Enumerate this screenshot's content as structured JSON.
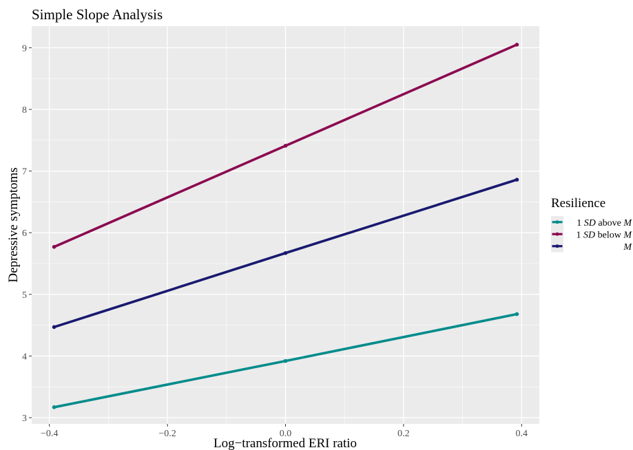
{
  "chart_data": {
    "type": "line",
    "title": "Simple Slope Analysis",
    "xlabel": "Log−transformed ERI ratio",
    "ylabel": "Depressive symptoms",
    "x": [
      -0.392,
      0.0,
      0.392
    ],
    "xlim": [
      -0.43,
      0.43
    ],
    "ylim": [
      2.9,
      9.35
    ],
    "xticks": [
      -0.4,
      -0.2,
      0.0,
      0.2,
      0.4
    ],
    "xtick_labels": [
      "−0.4",
      "−0.2",
      "0.0",
      "0.2",
      "0.4"
    ],
    "yticks": [
      3,
      4,
      5,
      6,
      7,
      8,
      9
    ],
    "ytick_labels": [
      "3",
      "4",
      "5",
      "6",
      "7",
      "8",
      "9"
    ],
    "grid": true,
    "legend": {
      "title": "Resilience",
      "position": "right",
      "entries": [
        {
          "prefix": "1 ",
          "italic1": "SD",
          "middle": " above ",
          "italic2": "M"
        },
        {
          "prefix": "1 ",
          "italic1": "SD",
          "middle": " below ",
          "italic2": "M"
        },
        {
          "prefix": "",
          "italic1": "",
          "middle": "",
          "italic2": "M"
        }
      ]
    },
    "series": [
      {
        "name": "1 SD above M",
        "color": "#008b8b",
        "values": [
          3.17,
          3.92,
          4.68
        ]
      },
      {
        "name": "1 SD below M",
        "color": "#8b0a50",
        "values": [
          5.77,
          7.41,
          9.05
        ]
      },
      {
        "name": "M",
        "color": "#191970",
        "values": [
          4.47,
          5.67,
          6.86
        ]
      }
    ]
  }
}
